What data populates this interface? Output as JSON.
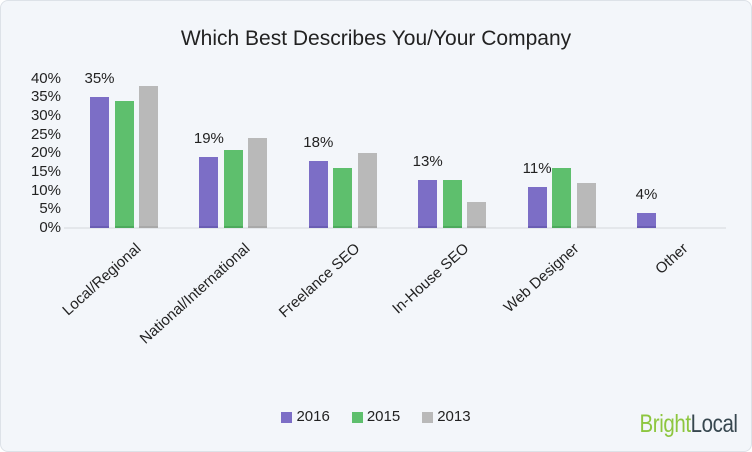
{
  "title": "Which Best Describes You/Your Company",
  "chart_data": {
    "type": "bar",
    "title": "Which Best Describes You/Your Company",
    "categories": [
      "Local/Regional",
      "National/International",
      "Freelance SEO",
      "In-House SEO",
      "Web Designer",
      "Other"
    ],
    "series": [
      {
        "name": "2016",
        "color": "#7c6ec6",
        "edge_color": "#6a5db4",
        "values": [
          35,
          19,
          18,
          13,
          11,
          4
        ]
      },
      {
        "name": "2015",
        "color": "#5ebf6d",
        "edge_color": "#4daa5c",
        "values": [
          34,
          21,
          16,
          13,
          16,
          0
        ]
      },
      {
        "name": "2013",
        "color": "#b9b9b9",
        "edge_color": "#a9a9a9",
        "values": [
          38,
          24,
          20,
          7,
          12,
          0
        ]
      }
    ],
    "bar_labels": [
      "35%",
      "19%",
      "18%",
      "13%",
      "11%",
      "4%"
    ],
    "xlabel": "",
    "ylabel": "",
    "ylim": [
      0,
      40
    ],
    "ytick_step": 5,
    "ytick_suffix": "%",
    "grid": false,
    "legend_position": "bottom"
  },
  "legend": {
    "items": [
      {
        "label": "2016",
        "color": "#7c6ec6"
      },
      {
        "label": "2015",
        "color": "#5ebf6d"
      },
      {
        "label": "2013",
        "color": "#b9b9b9"
      }
    ]
  },
  "logo": {
    "part1": "Bright",
    "part2": "Local",
    "part1_color": "#8dc63f",
    "part2_color": "#37474f"
  },
  "colors": {
    "background": "#f3f6fa",
    "border": "#dde2e8",
    "text": "#222222",
    "axis_line": "#e4e7eb"
  }
}
